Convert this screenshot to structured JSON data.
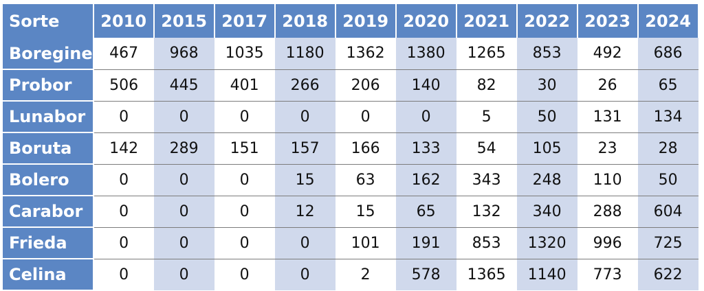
{
  "table": {
    "header": [
      "Sorte",
      "2010",
      "2015",
      "2017",
      "2018",
      "2019",
      "2020",
      "2021",
      "2022",
      "2023",
      "2024"
    ],
    "rows": [
      {
        "name": "Boregine",
        "values": [
          "467",
          "968",
          "1035",
          "1180",
          "1362",
          "1380",
          "1265",
          "853",
          "492",
          "686"
        ]
      },
      {
        "name": "Probor",
        "values": [
          "506",
          "445",
          "401",
          "266",
          "206",
          "140",
          "82",
          "30",
          "26",
          "65"
        ]
      },
      {
        "name": "Lunabor",
        "values": [
          "0",
          "0",
          "0",
          "0",
          "0",
          "0",
          "5",
          "50",
          "131",
          "134"
        ]
      },
      {
        "name": "Boruta",
        "values": [
          "142",
          "289",
          "151",
          "157",
          "166",
          "133",
          "54",
          "105",
          "23",
          "28"
        ]
      },
      {
        "name": "Bolero",
        "values": [
          "0",
          "0",
          "0",
          "15",
          "63",
          "162",
          "343",
          "248",
          "110",
          "50"
        ]
      },
      {
        "name": "Carabor",
        "values": [
          "0",
          "0",
          "0",
          "12",
          "15",
          "65",
          "132",
          "340",
          "288",
          "604"
        ]
      },
      {
        "name": "Frieda",
        "values": [
          "0",
          "0",
          "0",
          "0",
          "101",
          "191",
          "853",
          "1320",
          "996",
          "725"
        ]
      },
      {
        "name": "Celina",
        "values": [
          "0",
          "0",
          "0",
          "0",
          "2",
          "578",
          "1365",
          "1140",
          "773",
          "622"
        ]
      }
    ],
    "shaded_columns": [
      "2015",
      "2018",
      "2020",
      "2022",
      "2024"
    ]
  },
  "colors": {
    "header_bg": "#5b86c4",
    "header_text": "#ffffff",
    "shade": "#d0d9ec",
    "row_line": "#7b7b7b"
  }
}
